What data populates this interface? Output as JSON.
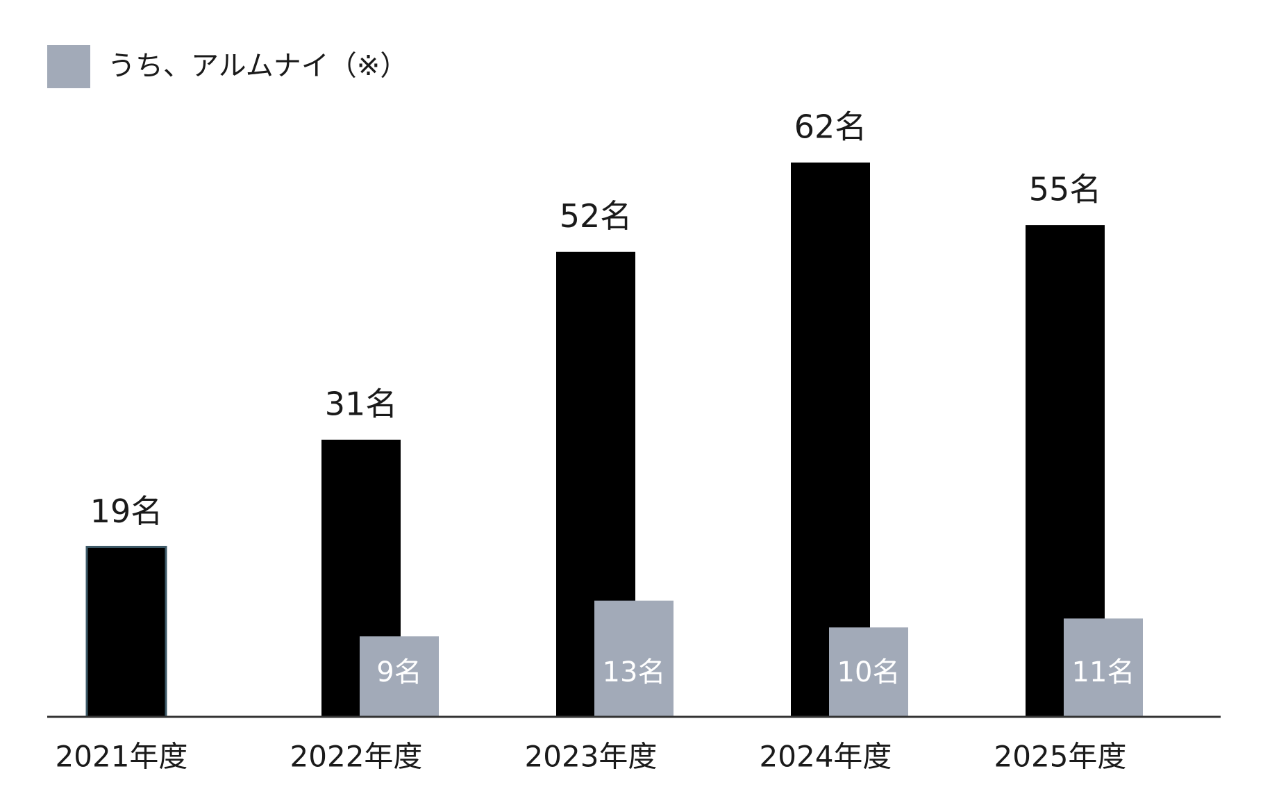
{
  "chart_data": {
    "type": "bar",
    "legend": "top-left",
    "categories": [
      "2021年度",
      "2022年度",
      "2023年度",
      "2024年度",
      "2025年度"
    ],
    "series": [
      {
        "color": "#000000",
        "values": [
          19,
          31,
          52,
          62,
          55
        ],
        "value_labels": [
          "19名",
          "31名",
          "52名",
          "62名",
          "55名"
        ]
      },
      {
        "name": "うち、アルムナイ（※）",
        "color": "#a2aab8",
        "values": [
          null,
          9,
          13,
          10,
          11
        ],
        "value_labels": [
          null,
          "9名",
          "13名",
          "10名",
          "11名"
        ]
      }
    ]
  }
}
